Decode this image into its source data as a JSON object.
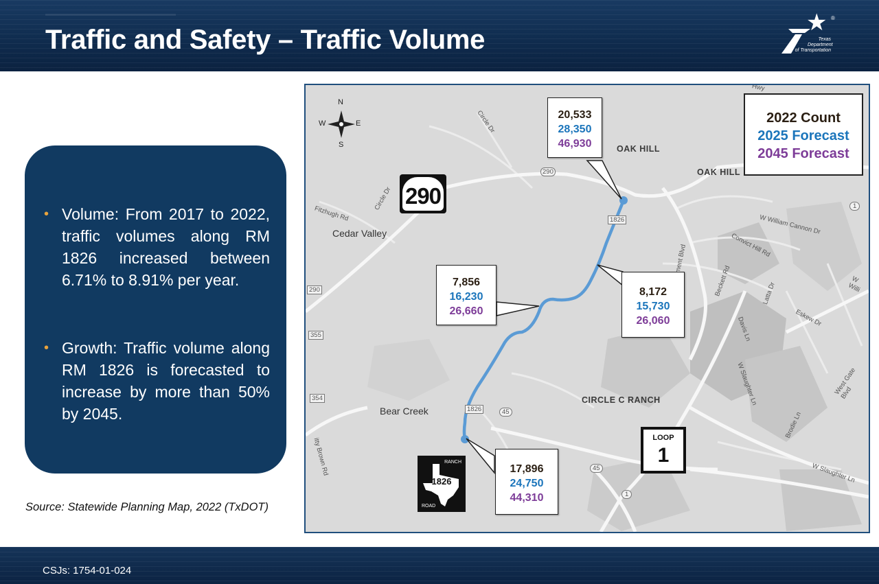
{
  "header": {
    "title": "Traffic and Safety – Traffic Volume",
    "logo": {
      "line1": "Texas",
      "line2": "Department",
      "line3": "of Transportation",
      "mark": "®"
    }
  },
  "panel": {
    "bullets": [
      {
        "term": "Volume:",
        "text": " From 2017 to 2022, traffic volumes along RM 1826 increased between 6.71% to 8.91% per year."
      },
      {
        "term": "Growth:",
        "text": " Traffic volume along RM 1826 is forecasted to increase by more than 50% by 2045."
      }
    ]
  },
  "source": "Source: Statewide Planning Map, 2022 (TxDOT)",
  "footer": {
    "csj": "CSJs: 1754-01-024"
  },
  "map": {
    "compass": {
      "n": "N",
      "s": "S",
      "e": "E",
      "w": "W"
    },
    "legend": {
      "l2022": "2022 Count",
      "l2025": "2025 Forecast",
      "l2045": "2045 Forecast"
    },
    "callouts": [
      {
        "v2022": "20,533",
        "v2025": "28,350",
        "v2045": "46,930"
      },
      {
        "v2022": "7,856",
        "v2025": "16,230",
        "v2045": "26,660"
      },
      {
        "v2022": "8,172",
        "v2025": "15,730",
        "v2045": "26,060"
      },
      {
        "v2022": "17,896",
        "v2025": "24,750",
        "v2045": "44,310"
      }
    ],
    "shields": {
      "us290": "290",
      "loop_label": "LOOP",
      "loop_num": "1",
      "ranch_label": "RANCH",
      "ranch_num": "1826",
      "road_label": "ROAD"
    },
    "places": {
      "oak_hill_1": "OAK HILL",
      "oak_hill_2": "OAK HILL",
      "cedar_valley": "Cedar Valley",
      "bear_creek": "Bear Creek",
      "circle_c": "CIRCLE C RANCH",
      "fitzhugh": "Fitzhugh Rd",
      "circle_dr": "Circle Dr",
      "circle_dr_2": "Circle Dr",
      "william_cannon": "W William Cannon Dr",
      "convict_hill": "Convict Hill Rd",
      "beckett": "Beckett Rd",
      "latta": "Latta Dr",
      "eskew": "Eskew Dr",
      "davis": "Davis Ln",
      "slaughter_1": "W Slaughter Ln",
      "slaughter_2": "W Slaughter Ln",
      "brodie": "Brodie Ln",
      "west_gate": "West Gate Blvd",
      "w_willi": "W Willi",
      "pment": "pment Blvd",
      "brown": "itty Brown Rd",
      "hwy": "Hwy",
      "r290a": "290",
      "r290b": "290",
      "r355": "355",
      "r354": "354",
      "r1826a": "1826",
      "r1826b": "1826",
      "r45a": "45",
      "r45b": "45",
      "r1a": "1",
      "r1b": "1"
    }
  }
}
